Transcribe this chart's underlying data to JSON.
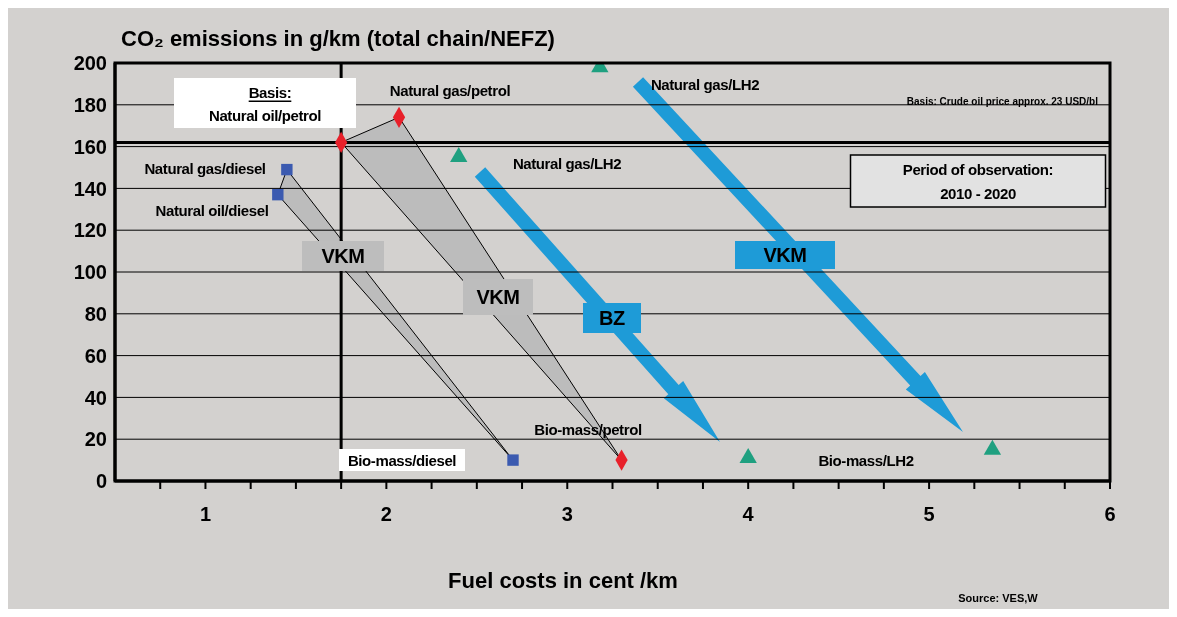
{
  "chart_data": {
    "type": "scatter",
    "title": "CO₂ emissions in g/km (total chain/NEFZ)",
    "xlabel": "Fuel costs in cent /km",
    "xlim": [
      0.5,
      6
    ],
    "xticks": [
      {
        "value": 0.75,
        "label": null
      },
      1,
      {
        "value": 1.25,
        "label": null
      },
      {
        "value": 1.5,
        "label": null
      },
      {
        "value": 1.75,
        "label": null
      },
      2,
      {
        "value": 2.25,
        "label": null
      },
      {
        "value": 2.5,
        "label": null
      },
      {
        "value": 2.75,
        "label": null
      },
      3,
      {
        "value": 3.25,
        "label": null
      },
      {
        "value": 3.5,
        "label": null
      },
      {
        "value": 3.75,
        "label": null
      },
      4,
      {
        "value": 4.25,
        "label": null
      },
      {
        "value": 4.5,
        "label": null
      },
      {
        "value": 4.75,
        "label": null
      },
      5,
      {
        "value": 5.25,
        "label": null
      },
      {
        "value": 5.5,
        "label": null
      },
      {
        "value": 5.75,
        "label": null
      },
      6
    ],
    "ylim": [
      0,
      200
    ],
    "yticks": [
      0,
      20,
      40,
      60,
      80,
      100,
      120,
      140,
      160,
      180,
      200
    ],
    "grid": "y",
    "series": [
      {
        "color": "#3b5ab0",
        "marker": "square",
        "x": [
          1.45,
          1.4,
          2.7
        ],
        "values": [
          149,
          137,
          10
        ]
      },
      {
        "color": "#e8202a",
        "marker": "diamond",
        "x": [
          1.75,
          2.07,
          3.3
        ],
        "values": [
          162,
          174,
          10
        ]
      },
      {
        "color": "#1fa080",
        "marker": "triangle",
        "x": [
          2.4,
          3.18,
          4.0,
          5.35
        ],
        "values": [
          155,
          198,
          11,
          15
        ]
      }
    ],
    "ref_lines": [
      {
        "axis": "x",
        "value": 1.75
      },
      {
        "axis": "y",
        "value": 162
      }
    ],
    "annotations": [
      "Basis:",
      "Natural oil/petrol",
      "Natural gas/petrol",
      "Natural gas/diesel",
      "Natural oil/diesel",
      "Natural gas/LH2",
      "Natural gas/LH2",
      "Bio-mass/diesel",
      "Bio-mass/petrol",
      "Bio-mass/LH2",
      "Basis: Crude oil price approx. 23 USD/bl",
      "Period of observation:",
      "2010 - 2020",
      "VKM",
      "VKM",
      "BZ",
      "VKM",
      "Source: VES,W"
    ]
  }
}
